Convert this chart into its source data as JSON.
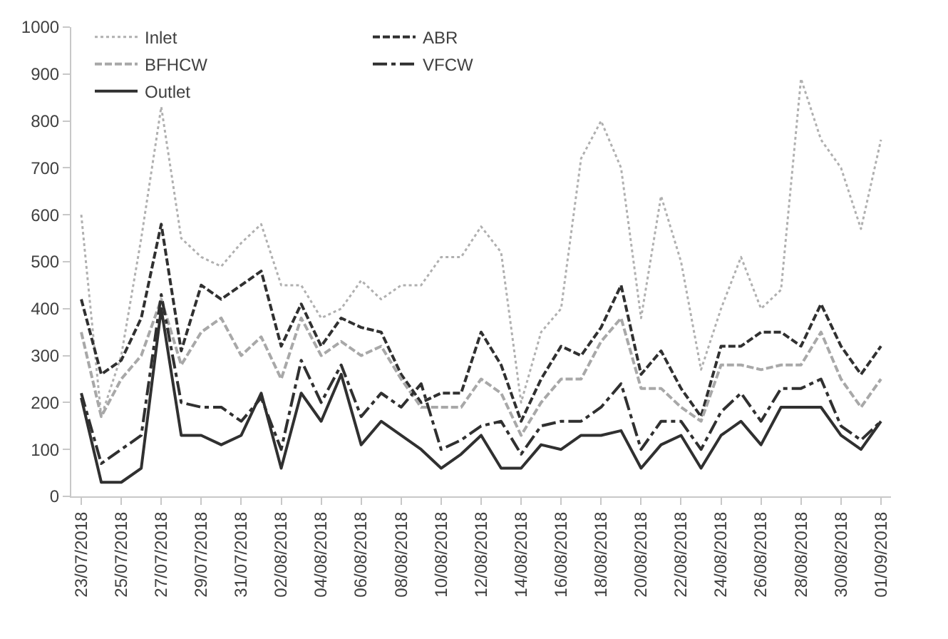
{
  "chart_data": {
    "type": "line",
    "x": [
      "2018-07-23",
      "2018-07-24",
      "2018-07-25",
      "2018-07-26",
      "2018-07-27",
      "2018-07-28",
      "2018-07-29",
      "2018-07-30",
      "2018-07-31",
      "2018-08-01",
      "2018-08-02",
      "2018-08-03",
      "2018-08-04",
      "2018-08-05",
      "2018-08-06",
      "2018-08-07",
      "2018-08-08",
      "2018-08-09",
      "2018-08-10",
      "2018-08-11",
      "2018-08-12",
      "2018-08-13",
      "2018-08-14",
      "2018-08-15",
      "2018-08-16",
      "2018-08-17",
      "2018-08-18",
      "2018-08-19",
      "2018-08-20",
      "2018-08-21",
      "2018-08-22",
      "2018-08-23",
      "2018-08-24",
      "2018-08-25",
      "2018-08-26",
      "2018-08-27",
      "2018-08-28",
      "2018-08-29",
      "2018-08-30",
      "2018-08-31",
      "2018-09-01"
    ],
    "series": [
      {
        "name": "Inlet",
        "color": "#b0b0b0",
        "line_style": "dotted",
        "values": [
          600,
          170,
          300,
          550,
          830,
          550,
          510,
          490,
          540,
          580,
          450,
          450,
          380,
          400,
          460,
          420,
          450,
          450,
          510,
          510,
          575,
          520,
          200,
          350,
          400,
          720,
          800,
          700,
          380,
          640,
          500,
          270,
          400,
          510,
          400,
          440,
          890,
          760,
          700,
          570,
          760
        ]
      },
      {
        "name": "ABR",
        "color": "#303030",
        "line_style": "dashed",
        "values": [
          420,
          260,
          290,
          380,
          580,
          310,
          450,
          420,
          450,
          480,
          320,
          410,
          320,
          380,
          360,
          350,
          260,
          200,
          220,
          220,
          350,
          280,
          160,
          250,
          320,
          300,
          360,
          450,
          260,
          310,
          230,
          170,
          320,
          320,
          350,
          350,
          320,
          410,
          320,
          260,
          320
        ]
      },
      {
        "name": "BFHCW",
        "color": "#a8a8a8",
        "line_style": "dashed",
        "values": [
          350,
          170,
          250,
          300,
          420,
          280,
          350,
          380,
          300,
          340,
          250,
          380,
          300,
          330,
          300,
          320,
          250,
          190,
          190,
          190,
          250,
          220,
          130,
          200,
          250,
          250,
          330,
          380,
          230,
          230,
          190,
          160,
          280,
          280,
          270,
          280,
          280,
          350,
          250,
          190,
          250
        ]
      },
      {
        "name": "VFCW",
        "color": "#303030",
        "line_style": "dashdot",
        "values": [
          220,
          70,
          100,
          130,
          430,
          200,
          190,
          190,
          160,
          210,
          100,
          290,
          200,
          280,
          170,
          220,
          190,
          240,
          100,
          120,
          150,
          160,
          90,
          150,
          160,
          160,
          190,
          240,
          100,
          160,
          160,
          100,
          180,
          220,
          160,
          230,
          230,
          250,
          150,
          120,
          160
        ]
      },
      {
        "name": "Outlet",
        "color": "#303030",
        "line_style": "solid",
        "values": [
          210,
          30,
          30,
          60,
          400,
          130,
          130,
          110,
          130,
          220,
          60,
          220,
          160,
          260,
          110,
          160,
          130,
          100,
          60,
          90,
          130,
          60,
          60,
          110,
          100,
          130,
          130,
          140,
          60,
          110,
          130,
          60,
          130,
          160,
          110,
          190,
          190,
          190,
          130,
          100,
          160
        ]
      }
    ],
    "ylim": [
      0,
      1000
    ],
    "yticks": [
      0,
      100,
      200,
      300,
      400,
      500,
      600,
      700,
      800,
      900,
      1000
    ],
    "xlim": [
      "2018-07-22T12:00",
      "2018-09-01T12:00"
    ],
    "xticks": [
      {
        "value": "2018-07-23",
        "label": "23/07/2018"
      },
      {
        "value": "2018-07-25",
        "label": "25/07/2018"
      },
      {
        "value": "2018-07-27",
        "label": "27/07/2018"
      },
      {
        "value": "2018-07-29",
        "label": "29/07/2018"
      },
      {
        "value": "2018-07-31",
        "label": "31/07/2018"
      },
      {
        "value": "2018-08-02",
        "label": "02/08/2018"
      },
      {
        "value": "2018-08-04",
        "label": "04/08/2018"
      },
      {
        "value": "2018-08-06",
        "label": "06/08/2018"
      },
      {
        "value": "2018-08-08",
        "label": "08/08/2018"
      },
      {
        "value": "2018-08-10",
        "label": "10/08/2018"
      },
      {
        "value": "2018-08-12",
        "label": "12/08/2018"
      },
      {
        "value": "2018-08-14",
        "label": "14/08/2018"
      },
      {
        "value": "2018-08-16",
        "label": "16/08/2018"
      },
      {
        "value": "2018-08-18",
        "label": "18/08/2018"
      },
      {
        "value": "2018-08-20",
        "label": "20/08/2018"
      },
      {
        "value": "2018-08-22",
        "label": "22/08/2018"
      },
      {
        "value": "2018-08-24",
        "label": "24/08/2018"
      },
      {
        "value": "2018-08-26",
        "label": "26/08/2018"
      },
      {
        "value": "2018-08-28",
        "label": "28/08/2018"
      },
      {
        "value": "2018-08-30",
        "label": "30/08/2018"
      },
      {
        "value": "2018-09-01",
        "label": "01/09/2018"
      }
    ],
    "grid": false,
    "legend": "top",
    "marker": "none"
  }
}
